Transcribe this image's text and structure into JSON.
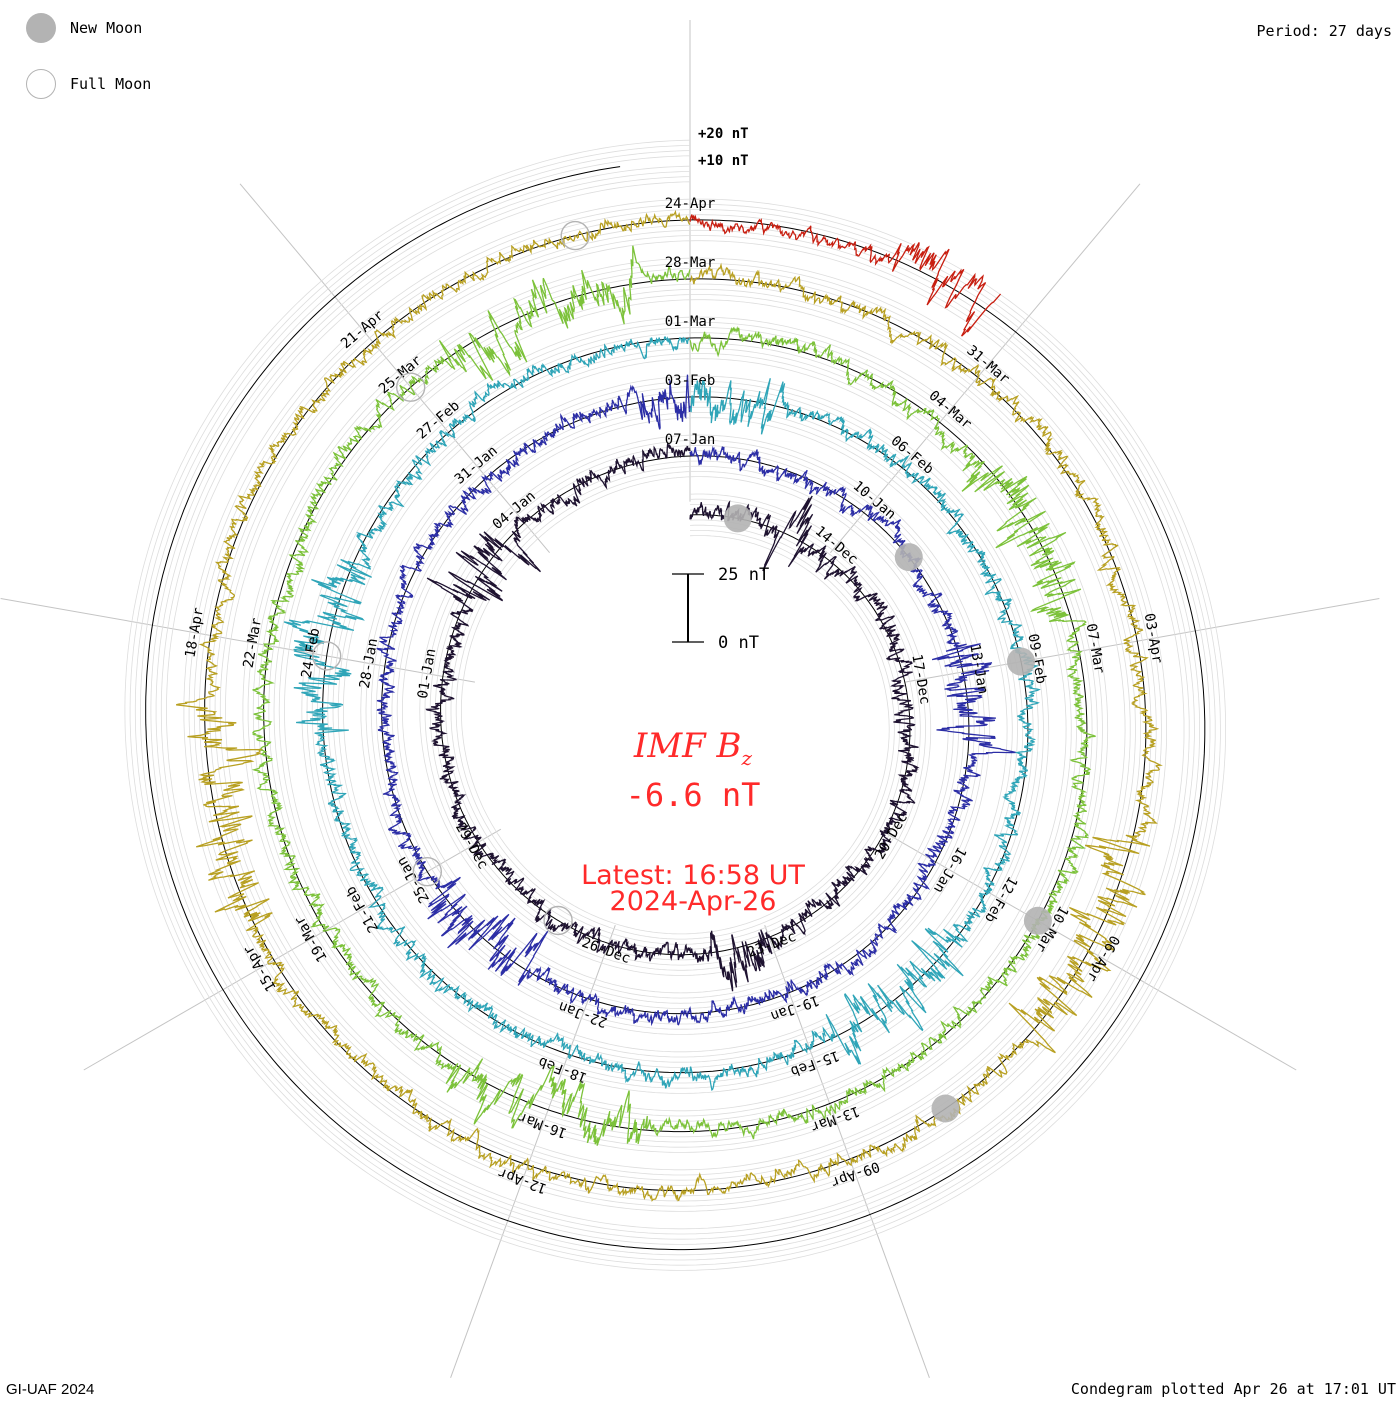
{
  "legend": {
    "new_moon_label": "New Moon",
    "full_moon_label": "Full Moon",
    "new_moon_color": "#b3b3b3",
    "full_moon_color": "#b3b3b3"
  },
  "period_label": "Period: 27 days",
  "footer": {
    "left": "GI-UAF 2024",
    "right": "Condegram plotted Apr 26 at 17:01 UT"
  },
  "center": {
    "title_main": "IMF B",
    "title_sub": "z",
    "value": "-6.6 nT",
    "latest": "Latest: 16:58 UT",
    "date": "2024-Apr-26",
    "text_color": "#ff2a2a"
  },
  "chart_data": {
    "type": "line",
    "title": "IMF Bz",
    "period_days": 27,
    "units": "nT",
    "scale_bar": {
      "top_label": "25 nT",
      "bottom_label": "0 nT"
    },
    "ring_scale_labels": [
      "+20 nT",
      "+10 nT"
    ],
    "grid": true,
    "series": [
      {
        "start": "2023-12-11",
        "color": "#1e1230",
        "date_labels": [
          "14-Dec",
          "17-Dec",
          "20-Dec",
          "23-Dec",
          "26-Dec",
          "29-Dec",
          "01-Jan",
          "04-Jan",
          "07-Jan"
        ],
        "new_moon": [
          "2023-12-12"
        ],
        "full_moon": [
          "2023-12-27"
        ]
      },
      {
        "start": "2024-01-07",
        "color": "#2c2ea6",
        "date_labels": [
          "10-Jan",
          "13-Jan",
          "16-Jan",
          "19-Jan",
          "22-Jan",
          "25-Jan",
          "28-Jan",
          "31-Jan",
          "03-Feb"
        ],
        "new_moon": [
          "2024-01-11"
        ],
        "full_moon": [
          "2024-01-25"
        ]
      },
      {
        "start": "2024-02-03",
        "color": "#2fa5b8",
        "date_labels": [
          "06-Feb",
          "09-Feb",
          "12-Feb",
          "15-Feb",
          "18-Feb",
          "21-Feb",
          "24-Feb",
          "27-Feb",
          "01-Mar"
        ],
        "new_moon": [
          "2024-02-09"
        ],
        "full_moon": [
          "2024-02-24"
        ]
      },
      {
        "start": "2024-03-01",
        "color": "#7cc23a",
        "date_labels": [
          "04-Mar",
          "07-Mar",
          "10-Mar",
          "13-Mar",
          "16-Mar",
          "19-Mar",
          "22-Mar",
          "25-Mar",
          "28-Mar"
        ],
        "new_moon": [
          "2024-03-10"
        ],
        "full_moon": [
          "2024-03-25"
        ]
      },
      {
        "start": "2024-03-28",
        "color": "#b8a022",
        "date_labels": [
          "31-Mar",
          "03-Apr",
          "06-Apr",
          "09-Apr",
          "12-Apr",
          "15-Apr",
          "18-Apr",
          "21-Apr",
          "24-Apr"
        ],
        "new_moon": [
          "2024-04-08"
        ],
        "full_moon": [
          "2024-04-23"
        ]
      },
      {
        "start": "2024-04-24",
        "color": "#c81e10",
        "date_labels": [],
        "new_moon": [],
        "full_moon": []
      }
    ]
  }
}
